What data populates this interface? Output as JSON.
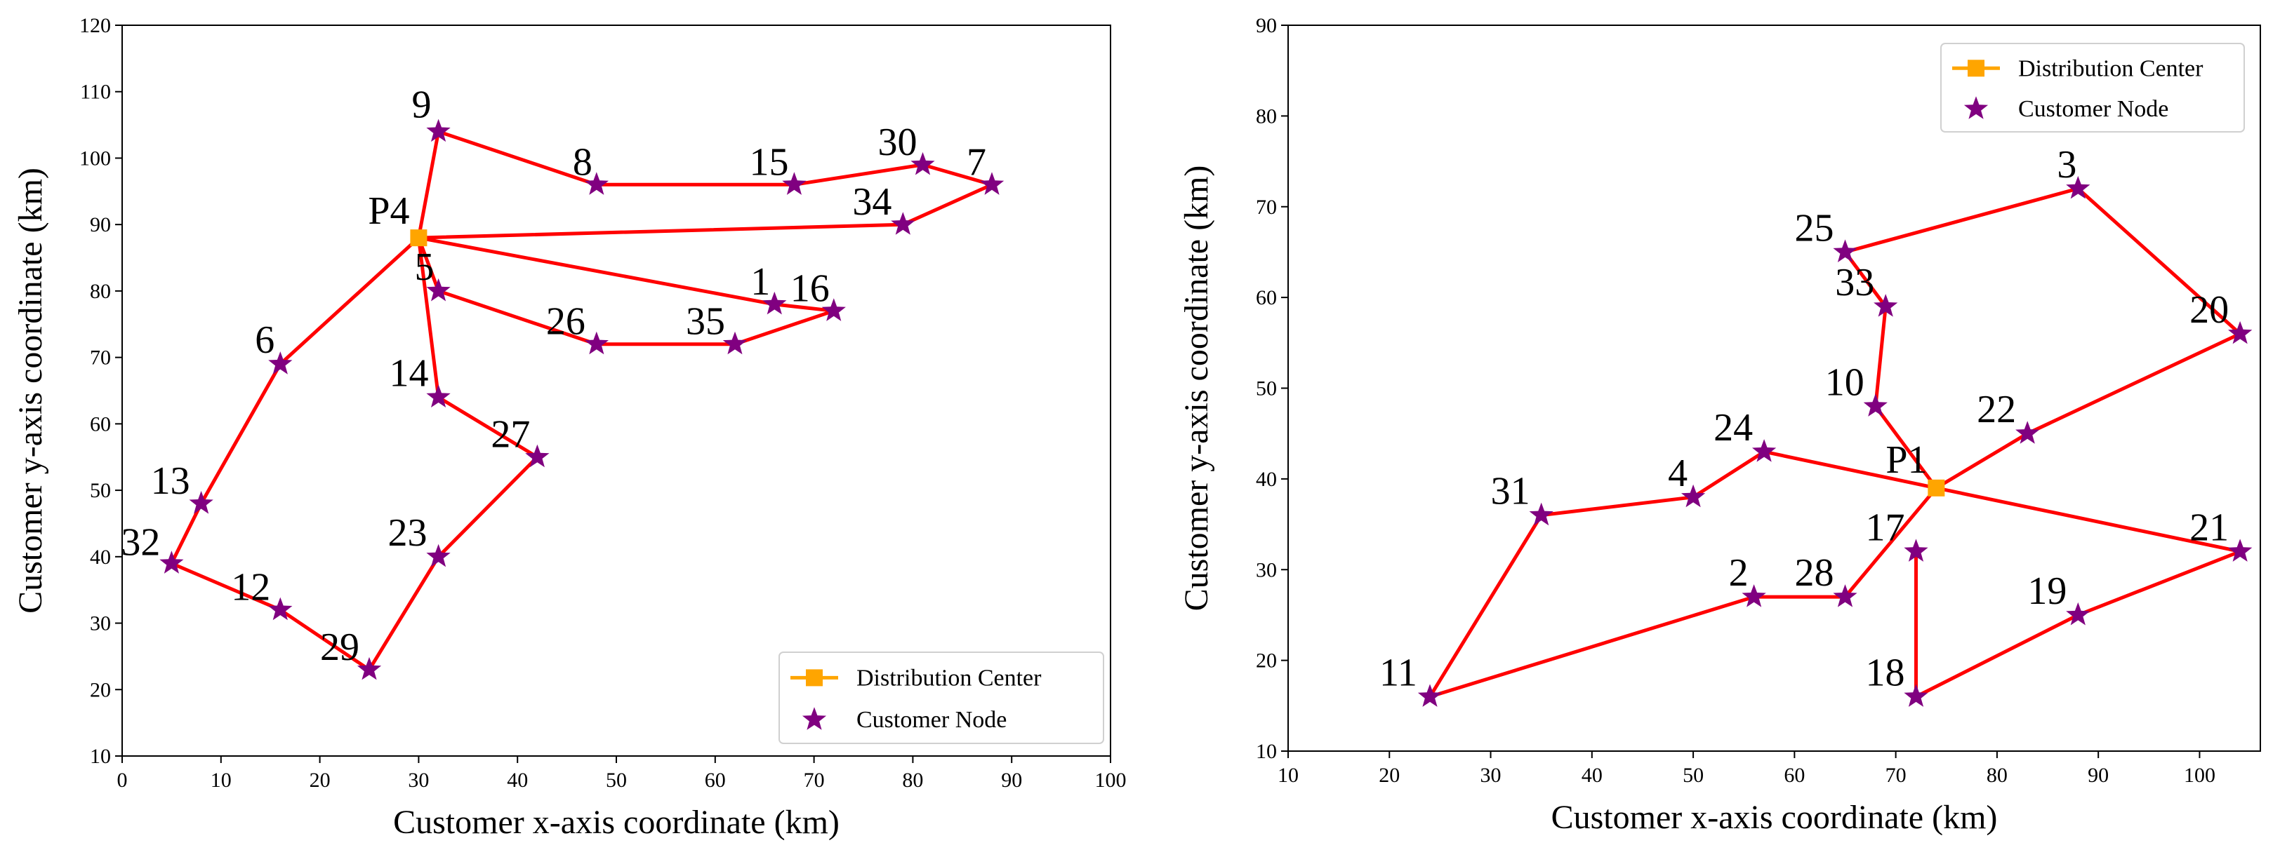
{
  "colors": {
    "route": "#ff0000",
    "depot": "#ffa500",
    "customer": "#800080",
    "text": "#000000"
  },
  "chart_data": [
    {
      "type": "scatter",
      "name": "left",
      "xlabel": "Customer x-axis coordinate (km)",
      "ylabel": "Customer y-axis coordinate (km)",
      "xlim": [
        0,
        100
      ],
      "ylim": [
        10,
        120
      ],
      "xticks": [
        0,
        10,
        20,
        30,
        40,
        50,
        60,
        70,
        80,
        90,
        100
      ],
      "yticks": [
        10,
        20,
        30,
        40,
        50,
        60,
        70,
        80,
        90,
        100,
        110,
        120
      ],
      "legend": {
        "position": "bottom-right",
        "entries": [
          "Distribution Center",
          "Customer Node"
        ]
      },
      "depot": {
        "label": "P4",
        "x": 30,
        "y": 88
      },
      "customers": [
        {
          "id": "1",
          "x": 66,
          "y": 78
        },
        {
          "id": "5",
          "x": 32,
          "y": 80
        },
        {
          "id": "6",
          "x": 16,
          "y": 69
        },
        {
          "id": "7",
          "x": 88,
          "y": 96
        },
        {
          "id": "8",
          "x": 48,
          "y": 96
        },
        {
          "id": "9",
          "x": 32,
          "y": 104
        },
        {
          "id": "12",
          "x": 16,
          "y": 32
        },
        {
          "id": "13",
          "x": 8,
          "y": 48
        },
        {
          "id": "14",
          "x": 32,
          "y": 64
        },
        {
          "id": "15",
          "x": 68,
          "y": 96
        },
        {
          "id": "16",
          "x": 72,
          "y": 77
        },
        {
          "id": "23",
          "x": 32,
          "y": 40
        },
        {
          "id": "26",
          "x": 48,
          "y": 72
        },
        {
          "id": "27",
          "x": 42,
          "y": 55
        },
        {
          "id": "29",
          "x": 25,
          "y": 23
        },
        {
          "id": "30",
          "x": 81,
          "y": 99
        },
        {
          "id": "32",
          "x": 5,
          "y": 39
        },
        {
          "id": "34",
          "x": 79,
          "y": 90
        },
        {
          "id": "35",
          "x": 62,
          "y": 72
        }
      ],
      "routes": [
        [
          "P4",
          "9",
          "8",
          "15",
          "30",
          "7",
          "34",
          "P4"
        ],
        [
          "P4",
          "1",
          "16",
          "35",
          "26",
          "5",
          "P4"
        ],
        [
          "P4",
          "14",
          "27",
          "23",
          "29",
          "12",
          "32",
          "13",
          "6",
          "P4"
        ]
      ]
    },
    {
      "type": "scatter",
      "name": "right",
      "xlabel": "Customer x-axis coordinate (km)",
      "ylabel": "Customer y-axis coordinate (km)",
      "xlim": [
        10,
        106
      ],
      "ylim": [
        10,
        90
      ],
      "xticks": [
        10,
        20,
        30,
        40,
        50,
        60,
        70,
        80,
        90,
        100
      ],
      "yticks": [
        10,
        20,
        30,
        40,
        50,
        60,
        70,
        80,
        90
      ],
      "legend": {
        "position": "top-right",
        "entries": [
          "Distribution Center",
          "Customer Node"
        ]
      },
      "depot": {
        "label": "P1",
        "x": 74,
        "y": 39
      },
      "customers": [
        {
          "id": "2",
          "x": 56,
          "y": 27
        },
        {
          "id": "3",
          "x": 88,
          "y": 72
        },
        {
          "id": "4",
          "x": 50,
          "y": 38
        },
        {
          "id": "10",
          "x": 68,
          "y": 48
        },
        {
          "id": "11",
          "x": 24,
          "y": 16
        },
        {
          "id": "17",
          "x": 72,
          "y": 32
        },
        {
          "id": "18",
          "x": 72,
          "y": 16
        },
        {
          "id": "19",
          "x": 88,
          "y": 25
        },
        {
          "id": "20",
          "x": 104,
          "y": 56
        },
        {
          "id": "21",
          "x": 104,
          "y": 32
        },
        {
          "id": "22",
          "x": 83,
          "y": 45
        },
        {
          "id": "24",
          "x": 57,
          "y": 43
        },
        {
          "id": "25",
          "x": 65,
          "y": 65
        },
        {
          "id": "28",
          "x": 65,
          "y": 27
        },
        {
          "id": "31",
          "x": 35,
          "y": 36
        },
        {
          "id": "33",
          "x": 69,
          "y": 59
        }
      ],
      "routes": [
        [
          "P1",
          "10",
          "33",
          "25",
          "3",
          "20",
          "22",
          "P1"
        ],
        [
          "P1",
          "24",
          "4",
          "31",
          "11",
          "2",
          "28",
          "P1"
        ],
        [
          "P1",
          "21",
          "19",
          "18",
          "17"
        ]
      ]
    }
  ]
}
